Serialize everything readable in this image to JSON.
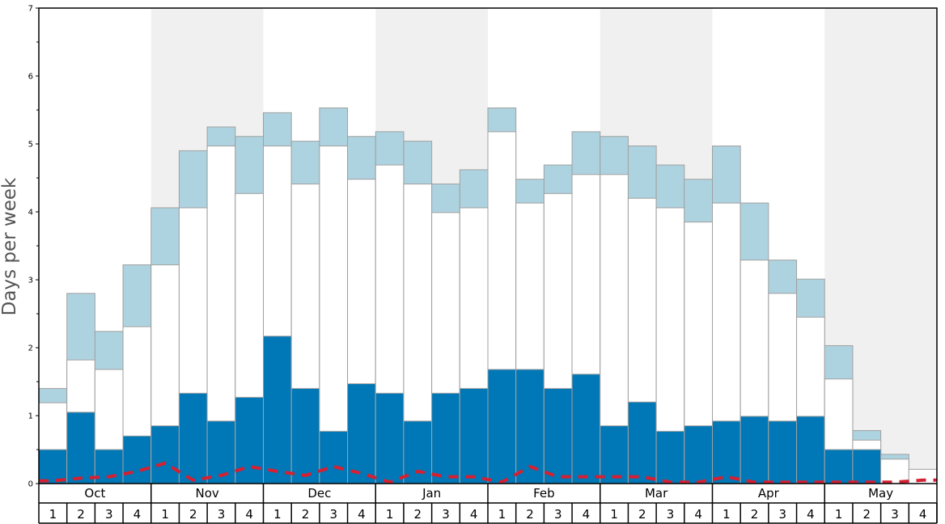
{
  "chart_data": {
    "type": "bar",
    "ylabel": "Days per week",
    "ylim": [
      0,
      7
    ],
    "yticks": [
      "0",
      "1",
      "2",
      "3",
      "4",
      "5",
      "6",
      "7"
    ],
    "months": [
      "Oct",
      "Nov",
      "Dec",
      "Jan",
      "Feb",
      "Mar",
      "Apr",
      "May"
    ],
    "weeks": [
      "1",
      "2",
      "3",
      "4"
    ],
    "colors": {
      "dark": "#0077b6",
      "white": "#ffffff",
      "light": "#aed3e0",
      "line": "#d62032",
      "band": "#f0f0f1",
      "bar_stroke": "#a0a0a0",
      "frame": "#000000"
    },
    "series": [
      {
        "values": [
          0.5,
          1.05,
          0.5,
          0.7,
          0.85,
          1.33,
          0.92,
          1.27,
          2.17,
          1.4,
          0.77,
          1.47,
          1.33,
          0.92,
          1.33,
          1.4,
          1.68,
          1.68,
          1.4,
          1.61,
          0.85,
          1.2,
          0.77,
          0.85,
          0.92,
          0.99,
          0.92,
          0.99,
          0.5,
          0.5,
          0.0,
          0.0
        ]
      },
      {
        "values": [
          1.19,
          1.82,
          1.68,
          2.31,
          3.22,
          4.06,
          4.97,
          4.27,
          4.97,
          4.41,
          4.97,
          4.48,
          4.69,
          4.41,
          3.99,
          4.06,
          5.18,
          4.13,
          4.27,
          4.55,
          4.55,
          4.2,
          4.06,
          3.85,
          4.13,
          3.29,
          2.8,
          2.45,
          1.54,
          0.64,
          0.36,
          0.21
        ]
      },
      {
        "values": [
          1.4,
          2.8,
          2.24,
          3.22,
          4.06,
          4.9,
          5.25,
          5.11,
          5.46,
          5.04,
          5.53,
          5.11,
          5.18,
          5.04,
          4.41,
          4.62,
          5.53,
          4.48,
          4.69,
          5.18,
          5.11,
          4.97,
          4.69,
          4.48,
          4.97,
          4.13,
          3.29,
          3.01,
          2.03,
          0.78,
          0.43,
          0.0
        ]
      },
      {
        "values": [
          0.04,
          0.08,
          0.1,
          0.18,
          0.3,
          0.05,
          0.12,
          0.25,
          0.18,
          0.12,
          0.25,
          0.15,
          0.02,
          0.18,
          0.1,
          0.1,
          0.02,
          0.25,
          0.1,
          0.1,
          0.1,
          0.1,
          0.02,
          0.02,
          0.1,
          0.02,
          0.02,
          0.02,
          0.02,
          0.02,
          0.02,
          0.05
        ]
      }
    ]
  }
}
